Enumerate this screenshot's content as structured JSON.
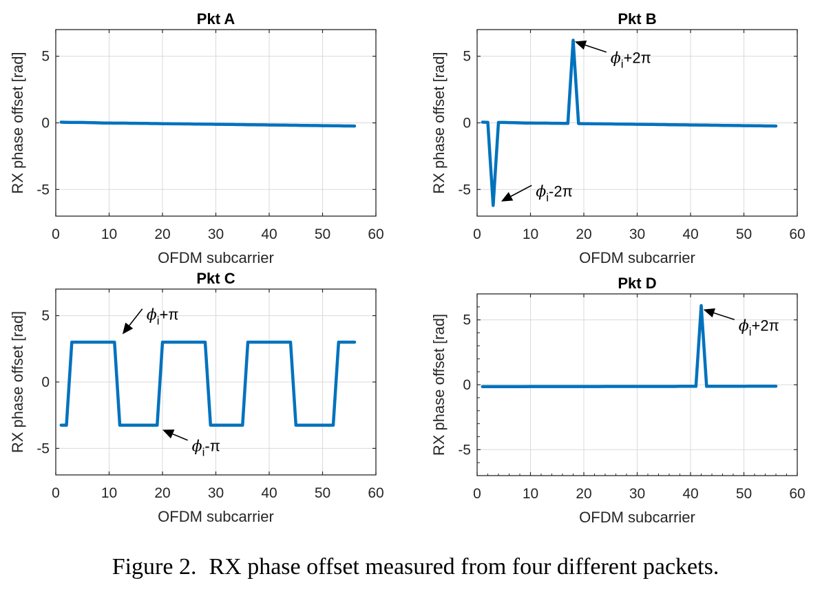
{
  "caption": {
    "number": "Figure 2.",
    "text": "RX phase offset measured from four different packets."
  },
  "style": {
    "line_color": "#0072BD",
    "grid_color": "#d9d9d9",
    "annotation_color": "#000000"
  },
  "chart_data": [
    {
      "type": "line",
      "title": "Pkt A",
      "xlabel": "OFDM subcarrier",
      "ylabel": "RX phase offset [rad]",
      "xlim": [
        0,
        60
      ],
      "ylim": [
        -7,
        7
      ],
      "xticks": [
        0,
        10,
        20,
        30,
        40,
        50,
        60
      ],
      "yticks": [
        5,
        0,
        -5
      ],
      "grid": true,
      "series": [
        {
          "x": [
            1,
            2,
            3,
            4,
            5,
            6,
            7,
            8,
            9,
            10,
            11,
            12,
            13,
            14,
            15,
            16,
            17,
            18,
            19,
            20,
            21,
            22,
            23,
            24,
            25,
            26,
            27,
            28,
            29,
            30,
            31,
            32,
            33,
            34,
            35,
            36,
            37,
            38,
            39,
            40,
            41,
            42,
            43,
            44,
            45,
            46,
            47,
            48,
            49,
            50,
            51,
            52,
            53,
            54,
            55,
            56
          ],
          "y": [
            0.05,
            0.04,
            0.03,
            0.03,
            0.03,
            0.02,
            0.01,
            0.0,
            -0.01,
            -0.01,
            -0.02,
            -0.02,
            -0.02,
            -0.03,
            -0.03,
            -0.04,
            -0.04,
            -0.05,
            -0.05,
            -0.06,
            -0.06,
            -0.07,
            -0.07,
            -0.08,
            -0.08,
            -0.09,
            -0.09,
            -0.1,
            -0.1,
            -0.11,
            -0.11,
            -0.12,
            -0.12,
            -0.13,
            -0.13,
            -0.14,
            -0.14,
            -0.15,
            -0.15,
            -0.16,
            -0.16,
            -0.17,
            -0.17,
            -0.18,
            -0.18,
            -0.19,
            -0.19,
            -0.2,
            -0.2,
            -0.21,
            -0.21,
            -0.22,
            -0.22,
            -0.23,
            -0.23,
            -0.24
          ]
        }
      ],
      "annotations": []
    },
    {
      "type": "line",
      "title": "Pkt B",
      "xlabel": "OFDM subcarrier",
      "ylabel": "RX phase offset [rad]",
      "xlim": [
        0,
        60
      ],
      "ylim": [
        -7,
        7
      ],
      "xticks": [
        0,
        10,
        20,
        30,
        40,
        50,
        60
      ],
      "yticks": [
        5,
        0,
        -5
      ],
      "grid": true,
      "series": [
        {
          "x": [
            1,
            2,
            3,
            4,
            5,
            6,
            7,
            8,
            9,
            10,
            11,
            12,
            13,
            14,
            15,
            16,
            17,
            18,
            19,
            20,
            21,
            22,
            23,
            24,
            25,
            26,
            27,
            28,
            29,
            30,
            31,
            32,
            33,
            34,
            35,
            36,
            37,
            38,
            39,
            40,
            41,
            42,
            43,
            44,
            45,
            46,
            47,
            48,
            49,
            50,
            51,
            52,
            53,
            54,
            55,
            56
          ],
          "y": [
            0.05,
            0.04,
            -6.2,
            0.03,
            0.03,
            0.02,
            0.01,
            0.0,
            -0.01,
            -0.01,
            -0.02,
            -0.02,
            -0.02,
            -0.03,
            -0.03,
            -0.04,
            -0.04,
            6.2,
            -0.05,
            -0.06,
            -0.06,
            -0.07,
            -0.07,
            -0.08,
            -0.08,
            -0.09,
            -0.09,
            -0.1,
            -0.1,
            -0.11,
            -0.11,
            -0.12,
            -0.12,
            -0.13,
            -0.13,
            -0.14,
            -0.14,
            -0.15,
            -0.15,
            -0.16,
            -0.16,
            -0.17,
            -0.17,
            -0.18,
            -0.18,
            -0.19,
            -0.19,
            -0.2,
            -0.2,
            -0.21,
            -0.21,
            -0.22,
            -0.22,
            -0.23,
            -0.23,
            -0.24
          ]
        }
      ],
      "annotations": [
        {
          "base": "ϕ",
          "sub": "i",
          "rest": "+2π",
          "point": [
            18.3,
            6.1
          ],
          "text_at": [
            25,
            5
          ]
        },
        {
          "base": "ϕ",
          "sub": "i",
          "rest": "-2π",
          "point": [
            4.5,
            -5.9
          ],
          "text_at": [
            11,
            -5
          ]
        }
      ]
    },
    {
      "type": "line",
      "title": "Pkt C",
      "xlabel": "OFDM subcarrier",
      "ylabel": "RX phase offset [rad]",
      "xlim": [
        0,
        60
      ],
      "ylim": [
        -7,
        7
      ],
      "xticks": [
        0,
        10,
        20,
        30,
        40,
        50,
        60
      ],
      "yticks": [
        5,
        0,
        -5
      ],
      "grid": true,
      "series": [
        {
          "x": [
            1,
            2,
            3,
            4,
            5,
            6,
            7,
            8,
            9,
            10,
            11,
            12,
            13,
            14,
            15,
            16,
            17,
            18,
            19,
            20,
            21,
            22,
            23,
            24,
            25,
            26,
            27,
            28,
            29,
            30,
            31,
            32,
            33,
            34,
            35,
            36,
            37,
            38,
            39,
            40,
            41,
            42,
            43,
            44,
            45,
            46,
            47,
            48,
            49,
            50,
            51,
            52,
            53,
            54,
            55,
            56
          ],
          "y": [
            -3.25,
            -3.25,
            3.0,
            3.0,
            3.0,
            3.0,
            3.0,
            3.0,
            3.0,
            3.0,
            3.0,
            -3.25,
            -3.25,
            -3.25,
            -3.25,
            -3.25,
            -3.25,
            -3.25,
            -3.25,
            3.0,
            3.0,
            3.0,
            3.0,
            3.0,
            3.0,
            3.0,
            3.0,
            3.0,
            -3.25,
            -3.25,
            -3.25,
            -3.25,
            -3.25,
            -3.25,
            -3.25,
            3.0,
            3.0,
            3.0,
            3.0,
            3.0,
            3.0,
            3.0,
            3.0,
            3.0,
            -3.25,
            -3.25,
            -3.25,
            -3.25,
            -3.25,
            -3.25,
            -3.25,
            -3.25,
            3.0,
            3.0,
            3.0,
            3.0
          ]
        }
      ],
      "annotations": [
        {
          "base": "ϕ",
          "sub": "i",
          "rest": "+π",
          "point": [
            12.5,
            3.6
          ],
          "text_at": [
            17,
            5.2
          ]
        },
        {
          "base": "ϕ",
          "sub": "i",
          "rest": "-π",
          "point": [
            20,
            -3.6
          ],
          "text_at": [
            25.5,
            -4.7
          ]
        }
      ]
    },
    {
      "type": "line",
      "title": "Pkt D",
      "xlabel": "OFDM subcarrier",
      "ylabel": "RX phase offset [rad]",
      "xlim": [
        0,
        60
      ],
      "ylim": [
        -7,
        7
      ],
      "xticks": [
        0,
        10,
        20,
        30,
        40,
        50,
        60
      ],
      "yticks": [
        5,
        0,
        -5
      ],
      "grid": true,
      "series": [
        {
          "x": [
            1,
            2,
            3,
            4,
            5,
            6,
            7,
            8,
            9,
            10,
            11,
            12,
            13,
            14,
            15,
            16,
            17,
            18,
            19,
            20,
            21,
            22,
            23,
            24,
            25,
            26,
            27,
            28,
            29,
            30,
            31,
            32,
            33,
            34,
            35,
            36,
            37,
            38,
            39,
            40,
            41,
            42,
            43,
            44,
            45,
            46,
            47,
            48,
            49,
            50,
            51,
            52,
            53,
            54,
            55,
            56
          ],
          "y": [
            -0.15,
            -0.15,
            -0.15,
            -0.15,
            -0.15,
            -0.15,
            -0.15,
            -0.15,
            -0.15,
            -0.14,
            -0.14,
            -0.14,
            -0.14,
            -0.14,
            -0.14,
            -0.14,
            -0.14,
            -0.14,
            -0.14,
            -0.14,
            -0.14,
            -0.14,
            -0.14,
            -0.13,
            -0.13,
            -0.13,
            -0.13,
            -0.13,
            -0.13,
            -0.13,
            -0.13,
            -0.13,
            -0.13,
            -0.13,
            -0.13,
            -0.13,
            -0.13,
            -0.12,
            -0.12,
            -0.12,
            -0.12,
            6.1,
            -0.12,
            -0.12,
            -0.12,
            -0.12,
            -0.12,
            -0.12,
            -0.12,
            -0.12,
            -0.11,
            -0.11,
            -0.11,
            -0.11,
            -0.11,
            -0.11
          ]
        }
      ],
      "annotations": [
        {
          "base": "ϕ",
          "sub": "i",
          "rest": "+2π",
          "point": [
            42.4,
            5.8
          ],
          "text_at": [
            49,
            4.7
          ]
        }
      ]
    }
  ]
}
